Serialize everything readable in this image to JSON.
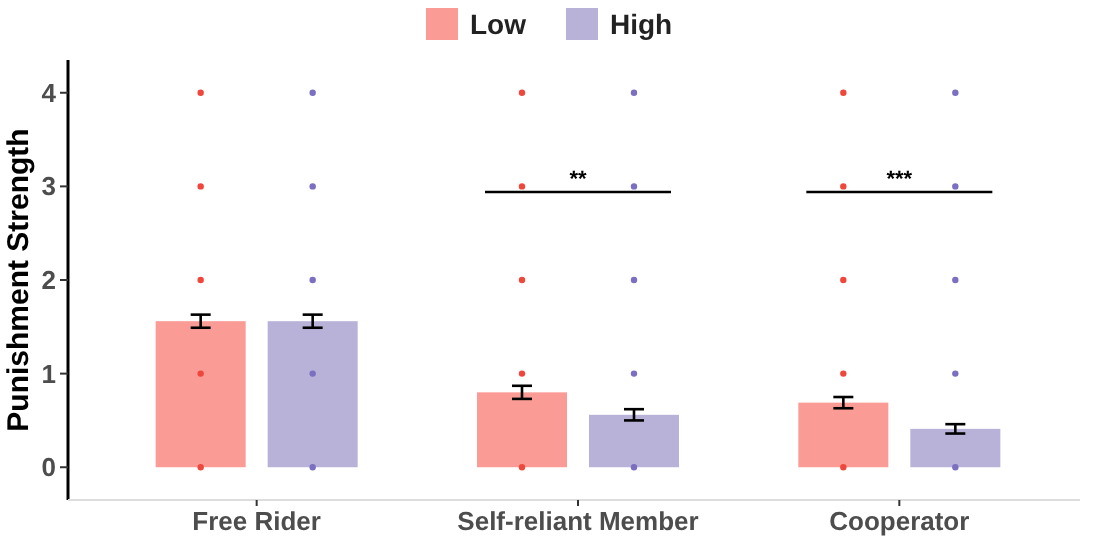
{
  "chart_data": {
    "type": "bar",
    "ylabel": "Punishment Strength",
    "categories": [
      "Free Rider",
      "Self-reliant Member",
      "Cooperator"
    ],
    "ylim": [
      -0.35,
      4.35
    ],
    "yticks": [
      0,
      1,
      2,
      3,
      4
    ],
    "legend": "top",
    "grid": false,
    "series": [
      {
        "name": "Low",
        "color": "#fa9c95",
        "values": [
          1.56,
          0.8,
          0.69
        ],
        "errors": [
          0.07,
          0.07,
          0.06
        ]
      },
      {
        "name": "High",
        "color": "#b8b2d9",
        "values": [
          1.56,
          0.56,
          0.41
        ],
        "errors": [
          0.07,
          0.06,
          0.05
        ]
      },
      {
        "type": "scatter",
        "color": "#f0473c",
        "x": [
          "Free Rider",
          "Free Rider",
          "Free Rider",
          "Free Rider",
          "Free Rider",
          "Self-reliant Member",
          "Self-reliant Member",
          "Self-reliant Member",
          "Self-reliant Member",
          "Self-reliant Member",
          "Cooperator",
          "Cooperator",
          "Cooperator",
          "Cooperator",
          "Cooperator"
        ],
        "values": [
          0,
          1,
          2,
          3,
          4,
          0,
          1,
          2,
          3,
          4,
          0,
          1,
          2,
          3,
          4
        ]
      },
      {
        "type": "scatter",
        "color": "#7a6fc0",
        "x": [
          "Free Rider",
          "Free Rider",
          "Free Rider",
          "Free Rider",
          "Free Rider",
          "Self-reliant Member",
          "Self-reliant Member",
          "Self-reliant Member",
          "Self-reliant Member",
          "Self-reliant Member",
          "Cooperator",
          "Cooperator",
          "Cooperator",
          "Cooperator",
          "Cooperator"
        ],
        "values": [
          0,
          1,
          2,
          3,
          4,
          0,
          1,
          2,
          3,
          4,
          0,
          1,
          2,
          3,
          4
        ]
      }
    ],
    "annotations": [
      "**",
      "***"
    ]
  }
}
